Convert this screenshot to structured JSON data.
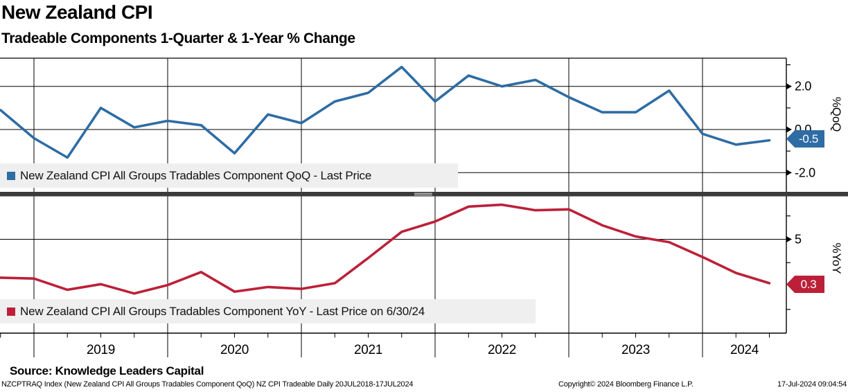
{
  "header": {
    "title": "New Zealand CPI",
    "subtitle": "Tradeable Components 1-Quarter & 1-Year % Change"
  },
  "chart_data": {
    "type": "line",
    "title": "New Zealand CPI",
    "subtitle": "Tradeable Components 1-Quarter & 1-Year % Change",
    "x_year_labels": [
      "2019",
      "2020",
      "2021",
      "2022",
      "2023",
      "2024"
    ],
    "quarters": [
      "Q3 2018",
      "Q4 2018",
      "Q1 2019",
      "Q2 2019",
      "Q3 2019",
      "Q4 2019",
      "Q1 2020",
      "Q2 2020",
      "Q3 2020",
      "Q4 2020",
      "Q1 2021",
      "Q2 2021",
      "Q3 2021",
      "Q4 2021",
      "Q1 2022",
      "Q2 2022",
      "Q3 2022",
      "Q4 2022",
      "Q1 2023",
      "Q2 2023",
      "Q3 2023",
      "Q4 2023",
      "Q1 2024",
      "Q2 2024"
    ],
    "grid": true,
    "legend_position": "inside-left",
    "panels": [
      {
        "id": "qoq",
        "axis_label": "%QoQ",
        "ytick_labels": [
          "2.0",
          "0.0",
          "-2.0"
        ],
        "ytick_values": [
          2.0,
          0.0,
          -2.0
        ],
        "minor_tick_values": [
          3.0,
          1.0,
          -1.0
        ],
        "ylim": [
          -2.9,
          3.3
        ],
        "last_price_label": "-0.5",
        "series": {
          "name": "New Zealand CPI All Groups Tradables Component QoQ - Last Price",
          "color": "#2e6ca4",
          "values": [
            0.9,
            -0.4,
            -1.3,
            1.0,
            0.1,
            0.4,
            0.2,
            -1.1,
            0.7,
            0.3,
            1.3,
            1.7,
            2.9,
            1.3,
            2.5,
            2.0,
            2.3,
            1.5,
            0.8,
            0.8,
            1.8,
            -0.2,
            -0.7,
            -0.5
          ]
        }
      },
      {
        "id": "yoy",
        "axis_label": "%YoY",
        "ytick_labels": [
          "5"
        ],
        "ytick_values": [
          5
        ],
        "minor_tick_values": [
          7.5,
          2.5,
          -2.5
        ],
        "ylim": [
          -5.0,
          9.5
        ],
        "last_price_label": "0.3",
        "series": {
          "name": "New Zealand CPI All Groups Tradables Component YoY - Last Price on 6/30/24",
          "color": "#bc2038",
          "values": [
            0.9,
            0.8,
            -0.4,
            0.2,
            -0.8,
            0.1,
            1.5,
            -0.6,
            -0.1,
            -0.3,
            0.3,
            3.0,
            5.8,
            6.9,
            8.5,
            8.7,
            8.1,
            8.2,
            6.5,
            5.3,
            4.7,
            3.1,
            1.4,
            0.3
          ]
        }
      }
    ]
  },
  "footer": {
    "source": "Source: Knowledge Leaders Capital",
    "terminal_line": "NZCPTRAQ Index (New Zealand CPI All Groups Tradables Component QoQ) NZ CPI Tradeable  Daily 20JUL2018-17JUL2024",
    "copyright": "Copyright© 2024 Bloomberg Finance L.P.",
    "timestamp": "17-Jul-2024 09:04:54"
  }
}
